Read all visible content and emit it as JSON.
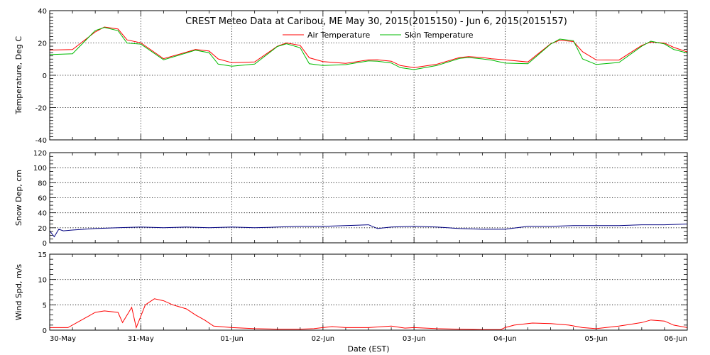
{
  "chart_data": [
    {
      "type": "line",
      "title": "CREST Meteo Data at Caribou, ME   May 30, 2015(2015150) - Jun  6, 2015(2015157)",
      "ylabel": "Temperature, Deg C",
      "ylim": [
        -40,
        40
      ],
      "yticks": [
        -40,
        -20,
        0,
        20,
        40
      ],
      "legend_position": "top-center",
      "grid": true,
      "series": [
        {
          "name": "Air Temperature",
          "color": "#ff0000",
          "x": [
            0,
            0.25,
            0.5,
            0.6,
            0.75,
            0.85,
            1.0,
            1.25,
            1.5,
            1.6,
            1.75,
            1.85,
            2.0,
            2.25,
            2.5,
            2.6,
            2.75,
            2.85,
            3.0,
            3.25,
            3.5,
            3.6,
            3.75,
            3.85,
            4.0,
            4.25,
            4.5,
            4.6,
            4.75,
            4.85,
            5.0,
            5.25,
            5.5,
            5.6,
            5.75,
            5.85,
            6.0,
            6.25,
            6.5,
            6.6,
            6.75,
            6.85,
            7.0
          ],
          "values": [
            15.6,
            15.9,
            26.8,
            29.9,
            28.6,
            21.9,
            20.1,
            10.3,
            14.3,
            16.0,
            15.0,
            10.1,
            7.8,
            8.2,
            18.0,
            20.0,
            18.5,
            10.8,
            8.5,
            7.4,
            9.5,
            9.6,
            8.7,
            6.0,
            4.7,
            6.8,
            11.0,
            11.5,
            11.0,
            10.2,
            9.6,
            8.2,
            19.5,
            21.7,
            20.9,
            14.6,
            9.5,
            9.4,
            18.5,
            20.6,
            19.9,
            17.3,
            14.4
          ]
        },
        {
          "name": "Skin Temperature",
          "color": "#00bb00",
          "x": [
            0,
            0.25,
            0.5,
            0.6,
            0.75,
            0.85,
            1.0,
            1.25,
            1.5,
            1.6,
            1.75,
            1.85,
            2.0,
            2.25,
            2.5,
            2.6,
            2.75,
            2.85,
            3.0,
            3.25,
            3.5,
            3.6,
            3.75,
            3.85,
            4.0,
            4.25,
            4.5,
            4.6,
            4.75,
            4.85,
            5.0,
            5.25,
            5.5,
            5.6,
            5.75,
            5.85,
            6.0,
            6.25,
            6.5,
            6.6,
            6.75,
            6.85,
            7.0
          ],
          "values": [
            12.8,
            13.3,
            27.7,
            29.6,
            27.6,
            19.9,
            19.3,
            9.6,
            13.8,
            15.5,
            14.0,
            6.9,
            5.6,
            6.9,
            17.8,
            19.5,
            17.0,
            7.1,
            6.0,
            6.6,
            8.9,
            8.7,
            7.6,
            4.7,
            3.5,
            6.0,
            10.4,
            11.0,
            10.1,
            9.4,
            7.5,
            7.1,
            19.3,
            22.4,
            21.4,
            10.1,
            6.7,
            7.9,
            18.0,
            21.1,
            19.4,
            16.0,
            13.8
          ]
        }
      ]
    },
    {
      "type": "line",
      "ylabel": "Snow Dep, cm",
      "ylim": [
        0,
        120
      ],
      "yticks": [
        0,
        20,
        40,
        60,
        80,
        100,
        120
      ],
      "grid": true,
      "series": [
        {
          "color": "#000080",
          "x": [
            0,
            0.05,
            0.1,
            0.15,
            0.25,
            0.5,
            0.75,
            1.0,
            1.25,
            1.5,
            1.75,
            2.0,
            2.25,
            2.5,
            2.75,
            3.0,
            3.25,
            3.5,
            3.6,
            3.75,
            4.0,
            4.25,
            4.5,
            4.75,
            5.0,
            5.25,
            5.5,
            5.75,
            6.0,
            6.25,
            6.5,
            6.75,
            7.0
          ],
          "values": [
            16,
            8,
            18,
            16,
            17,
            19,
            20,
            21,
            20,
            21,
            20,
            21,
            20,
            21,
            22,
            22,
            23,
            24,
            19,
            21,
            22,
            21,
            19,
            18,
            18,
            22,
            22,
            23,
            23,
            23,
            24,
            24,
            25
          ]
        }
      ]
    },
    {
      "type": "line",
      "ylabel": "Wind Spd, m/s",
      "xlabel": "Date (EST)",
      "ylim": [
        0,
        15
      ],
      "yticks": [
        0,
        5,
        10,
        15
      ],
      "x_ticklabels": [
        "30-May",
        "31-May",
        "01-Jun",
        "02-Jun",
        "03-Jun",
        "04-Jun",
        "05-Jun",
        "06-Jun"
      ],
      "grid": true,
      "series": [
        {
          "color": "#ff0000",
          "x": [
            0,
            0.2,
            0.35,
            0.5,
            0.6,
            0.75,
            0.8,
            0.9,
            0.95,
            1.05,
            1.15,
            1.25,
            1.35,
            1.5,
            1.6,
            1.7,
            1.8,
            2.0,
            2.25,
            2.5,
            2.75,
            2.9,
            3.0,
            3.1,
            3.25,
            3.5,
            3.75,
            3.9,
            4.0,
            4.25,
            4.5,
            4.75,
            4.95,
            5.0,
            5.1,
            5.3,
            5.5,
            5.7,
            5.85,
            6.0,
            6.25,
            6.5,
            6.6,
            6.75,
            6.85,
            7.0
          ],
          "values": [
            0.5,
            0.5,
            2.0,
            3.5,
            3.8,
            3.5,
            1.5,
            4.5,
            0.5,
            5.0,
            6.2,
            5.8,
            5.0,
            4.2,
            3.0,
            2.0,
            0.8,
            0.5,
            0.3,
            0.2,
            0.2,
            0.3,
            0.5,
            0.7,
            0.5,
            0.5,
            0.8,
            0.4,
            0.5,
            0.3,
            0.2,
            0.1,
            0.1,
            0.5,
            1.0,
            1.4,
            1.3,
            1.0,
            0.5,
            0.3,
            0.8,
            1.5,
            2.0,
            1.8,
            1.0,
            0.5
          ]
        }
      ]
    }
  ]
}
